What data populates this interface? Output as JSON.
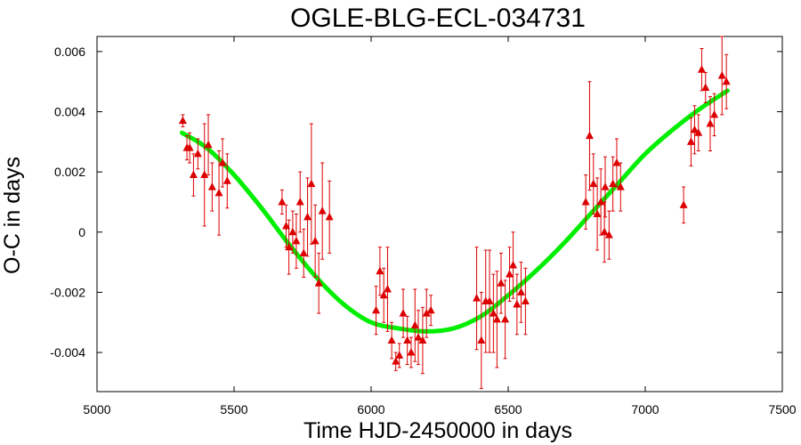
{
  "chart_data": {
    "type": "scatter",
    "title": "OGLE-BLG-ECL-034731",
    "xlabel": "Time HJD-2450000 in days",
    "ylabel": "O-C in days",
    "xlim": [
      5000,
      7500
    ],
    "ylim": [
      -0.0053,
      0.0065
    ],
    "x_ticks": [
      5000,
      5500,
      6000,
      6500,
      7000,
      7500
    ],
    "x_tick_labels": [
      "5000",
      "5500",
      "6000",
      "6500",
      "7000",
      "7500"
    ],
    "y_ticks": [
      -0.004,
      -0.002,
      0,
      0.002,
      0.004,
      0.006
    ],
    "y_tick_labels": [
      "-0.004",
      "-0.002",
      "0",
      "0.002",
      "0.004",
      "0.006"
    ],
    "grid": false,
    "legend": "none",
    "colors": {
      "points": "#dd0000",
      "fit": "#00ee00"
    },
    "series": [
      {
        "kind": "points-with-errorbars",
        "points": [
          {
            "x": 5313,
            "y": 0.0037,
            "err": 0.0002
          },
          {
            "x": 5328,
            "y": 0.0028,
            "err": 0.0004
          },
          {
            "x": 5338,
            "y": 0.0028,
            "err": 0.0005
          },
          {
            "x": 5352,
            "y": 0.0019,
            "err": 0.0007
          },
          {
            "x": 5368,
            "y": 0.0026,
            "err": 0.0005
          },
          {
            "x": 5392,
            "y": 0.0019,
            "err": 0.0017
          },
          {
            "x": 5406,
            "y": 0.0029,
            "err": 0.001
          },
          {
            "x": 5420,
            "y": 0.0015,
            "err": 0.0008
          },
          {
            "x": 5445,
            "y": 0.0013,
            "err": 0.0014
          },
          {
            "x": 5458,
            "y": 0.0023,
            "err": 0.0008
          },
          {
            "x": 5475,
            "y": 0.0017,
            "err": 0.0009
          },
          {
            "x": 5675,
            "y": 0.001,
            "err": 0.0004
          },
          {
            "x": 5690,
            "y": 0.0002,
            "err": 0.0007
          },
          {
            "x": 5700,
            "y": -0.0005,
            "err": 0.0009
          },
          {
            "x": 5714,
            "y": 0.0,
            "err": 0.0007
          },
          {
            "x": 5727,
            "y": -0.0003,
            "err": 0.0009
          },
          {
            "x": 5741,
            "y": 0.001,
            "err": 0.001
          },
          {
            "x": 5754,
            "y": -0.0007,
            "err": 0.0008
          },
          {
            "x": 5768,
            "y": 0.0005,
            "err": 0.0013
          },
          {
            "x": 5782,
            "y": 0.0016,
            "err": 0.002
          },
          {
            "x": 5796,
            "y": -0.0003,
            "err": 0.0012
          },
          {
            "x": 5809,
            "y": -0.0017,
            "err": 0.001
          },
          {
            "x": 5822,
            "y": 0.0007,
            "err": 0.0016
          },
          {
            "x": 5848,
            "y": 0.0005,
            "err": 0.0012
          },
          {
            "x": 6018,
            "y": -0.0026,
            "err": 0.0008
          },
          {
            "x": 6032,
            "y": -0.0013,
            "err": 0.0008
          },
          {
            "x": 6046,
            "y": -0.0021,
            "err": 0.0009
          },
          {
            "x": 6060,
            "y": -0.0019,
            "err": 0.0014
          },
          {
            "x": 6075,
            "y": -0.0036,
            "err": 0.0006
          },
          {
            "x": 6090,
            "y": -0.0043,
            "err": 0.0003
          },
          {
            "x": 6103,
            "y": -0.0041,
            "err": 0.0004
          },
          {
            "x": 6117,
            "y": -0.0027,
            "err": 0.0008
          },
          {
            "x": 6132,
            "y": -0.0036,
            "err": 0.0008
          },
          {
            "x": 6146,
            "y": -0.004,
            "err": 0.0005
          },
          {
            "x": 6160,
            "y": -0.0031,
            "err": 0.0012
          },
          {
            "x": 6172,
            "y": -0.0035,
            "err": 0.0009
          },
          {
            "x": 6188,
            "y": -0.0036,
            "err": 0.0011
          },
          {
            "x": 6202,
            "y": -0.0027,
            "err": 0.0008
          },
          {
            "x": 6218,
            "y": -0.0026,
            "err": 0.0005
          },
          {
            "x": 6385,
            "y": -0.0022,
            "err": 0.0017
          },
          {
            "x": 6402,
            "y": -0.0036,
            "err": 0.0016
          },
          {
            "x": 6418,
            "y": -0.0023,
            "err": 0.0017
          },
          {
            "x": 6432,
            "y": -0.0023,
            "err": 0.0017
          },
          {
            "x": 6446,
            "y": -0.0027,
            "err": 0.0013
          },
          {
            "x": 6459,
            "y": -0.0029,
            "err": 0.0016
          },
          {
            "x": 6474,
            "y": -0.0017,
            "err": 0.001
          },
          {
            "x": 6489,
            "y": -0.0029,
            "err": 0.0013
          },
          {
            "x": 6505,
            "y": -0.0014,
            "err": 0.0009
          },
          {
            "x": 6518,
            "y": -0.0011,
            "err": 0.0011
          },
          {
            "x": 6532,
            "y": -0.0024,
            "err": 0.001
          },
          {
            "x": 6547,
            "y": -0.002,
            "err": 0.001
          },
          {
            "x": 6563,
            "y": -0.0023,
            "err": 0.0011
          },
          {
            "x": 6783,
            "y": 0.001,
            "err": 0.0009
          },
          {
            "x": 6797,
            "y": 0.0032,
            "err": 0.0018
          },
          {
            "x": 6811,
            "y": 0.0016,
            "err": 0.001
          },
          {
            "x": 6825,
            "y": 0.0006,
            "err": 0.0012
          },
          {
            "x": 6838,
            "y": 0.001,
            "err": 0.0011
          },
          {
            "x": 6851,
            "y": 0.0,
            "err": 0.001
          },
          {
            "x": 6854,
            "y": 0.0015,
            "err": 0.001
          },
          {
            "x": 6868,
            "y": -0.0001,
            "err": 0.0008
          },
          {
            "x": 6882,
            "y": 0.0016,
            "err": 0.0009
          },
          {
            "x": 6896,
            "y": 0.0023,
            "err": 0.0008
          },
          {
            "x": 6910,
            "y": 0.0015,
            "err": 0.0008
          },
          {
            "x": 7140,
            "y": 0.0009,
            "err": 0.0006
          },
          {
            "x": 7167,
            "y": 0.003,
            "err": 0.0008
          },
          {
            "x": 7180,
            "y": 0.0034,
            "err": 0.0008
          },
          {
            "x": 7194,
            "y": 0.0033,
            "err": 0.0006
          },
          {
            "x": 7206,
            "y": 0.0054,
            "err": 0.0007
          },
          {
            "x": 7220,
            "y": 0.0048,
            "err": 0.0005
          },
          {
            "x": 7237,
            "y": 0.0036,
            "err": 0.0009
          },
          {
            "x": 7252,
            "y": 0.0039,
            "err": 0.0007
          },
          {
            "x": 7280,
            "y": 0.0052,
            "err": 0.0013
          },
          {
            "x": 7296,
            "y": 0.005,
            "err": 0.0009
          }
        ]
      },
      {
        "kind": "fit-curve",
        "x": [
          5310,
          5400,
          5500,
          5600,
          5700,
          5800,
          5900,
          6000,
          6100,
          6200,
          6300,
          6400,
          6500,
          6600,
          6700,
          6800,
          6900,
          7000,
          7100,
          7200,
          7300
        ],
        "y": [
          0.0033,
          0.0028,
          0.0019,
          0.0008,
          -0.0004,
          -0.0015,
          -0.0024,
          -0.003,
          -0.0032,
          -0.0033,
          -0.0032,
          -0.0028,
          -0.0021,
          -0.0013,
          -0.0004,
          0.0006,
          0.0016,
          0.0026,
          0.0034,
          0.0041,
          0.0047
        ]
      }
    ]
  }
}
